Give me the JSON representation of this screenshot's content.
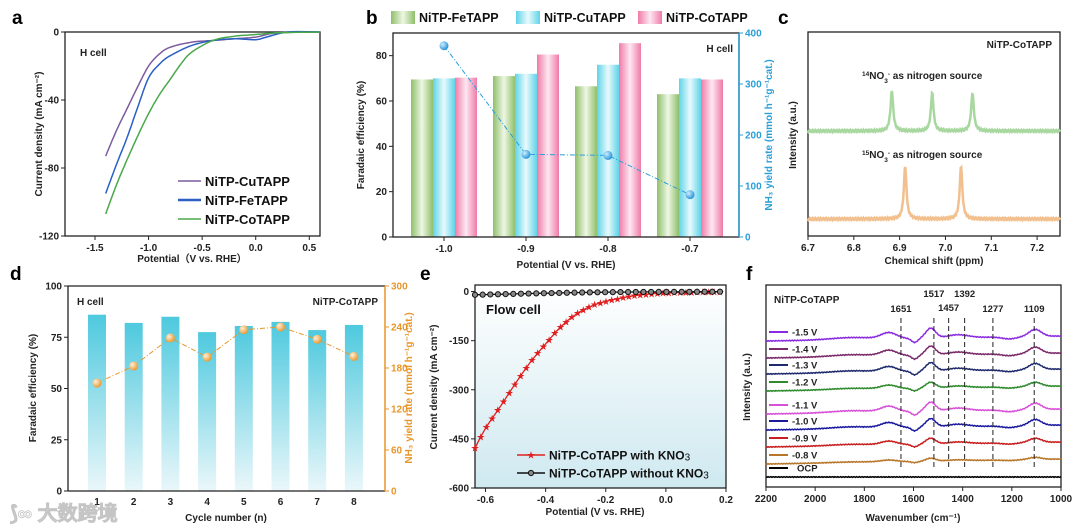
{
  "panel_labels": [
    "a",
    "b",
    "c",
    "d",
    "e",
    "f"
  ],
  "watermark": "大数跨境",
  "chart_data": [
    {
      "id": "a",
      "type": "line",
      "xlabel": "Potential（V vs. RHE）",
      "ylabel": "Current density (mA cm⁻²)",
      "xlim": [
        -1.78,
        0.6
      ],
      "ylim": [
        -120,
        0
      ],
      "xticks": [
        -1.5,
        -1.0,
        -0.5,
        0.0,
        0.5
      ],
      "xtick_labels": [
        "-1.5",
        "-1.0",
        "-0.5",
        "0.0",
        "0.5"
      ],
      "yticks": [
        0,
        -40,
        -80,
        -120
      ],
      "ytick_labels": [
        "0",
        "-40",
        "-80",
        "-120"
      ],
      "annotation": "H cell",
      "legend_position": "bottom-right",
      "series": [
        {
          "name": "NiTP-CuTAPP",
          "color": "#7b5c9e",
          "x": [
            -1.4,
            -1.3,
            -1.2,
            -1.1,
            -1.0,
            -0.9,
            -0.8,
            -0.6,
            -0.4,
            -0.2,
            0.0,
            0.2,
            0.6
          ],
          "y": [
            -73,
            -58,
            -45,
            -32,
            -20,
            -13,
            -9,
            -6,
            -5,
            -4,
            -3,
            -0.5,
            0
          ]
        },
        {
          "name": "NiTP-FeTAPP",
          "color": "#2a5fc4",
          "x": [
            -1.4,
            -1.3,
            -1.2,
            -1.1,
            -1.0,
            -0.9,
            -0.8,
            -0.6,
            -0.4,
            -0.2,
            0.0,
            0.1,
            0.3,
            0.6
          ],
          "y": [
            -95,
            -78,
            -62,
            -44,
            -27,
            -19,
            -14,
            -8,
            -5,
            -4,
            -4.5,
            -3,
            0,
            0
          ]
        },
        {
          "name": "NiTP-CoTAPP",
          "color": "#4aa84a",
          "x": [
            -1.4,
            -1.3,
            -1.2,
            -1.1,
            -1.0,
            -0.9,
            -0.8,
            -0.7,
            -0.6,
            -0.4,
            -0.2,
            0.0,
            0.2,
            0.6
          ],
          "y": [
            -107,
            -90,
            -75,
            -61,
            -48,
            -37,
            -28,
            -19,
            -12,
            -5,
            -2.5,
            -1.5,
            -0.5,
            0
          ]
        }
      ]
    },
    {
      "id": "b",
      "type": "bar",
      "xlabel": "Potential (V vs. RHE)",
      "ylabel": "Faradaic efficiency (%)",
      "ylabel_right": "NH₃ yield rate (mmol h⁻¹g⁻¹cat.)",
      "categories": [
        "-1.0",
        "-0.9",
        "-0.8",
        "-0.7"
      ],
      "ylim": [
        0,
        90
      ],
      "yticks": [
        0,
        20,
        40,
        60,
        80
      ],
      "ytick_labels": [
        "0",
        "20",
        "40",
        "60",
        "80"
      ],
      "ylim_right": [
        0,
        400
      ],
      "yticks_right": [
        0,
        100,
        200,
        300,
        400
      ],
      "ytick_labels_right": [
        "0",
        "100",
        "200",
        "300",
        "400"
      ],
      "annotation": "H cell",
      "legend_position": "top",
      "series": [
        {
          "name": "NiTP-FeTAPP",
          "color": "#8fbf6a",
          "values": [
            69.5,
            71,
            66.5,
            63
          ]
        },
        {
          "name": "NiTP-CuTAPP",
          "color": "#5fd3e8",
          "values": [
            70,
            72,
            76,
            70
          ]
        },
        {
          "name": "NiTP-CoTAPP",
          "color": "#f07aa8",
          "values": [
            70.3,
            80.5,
            85.5,
            69.5
          ]
        }
      ],
      "line_series": {
        "name": "NH₃ yield rate",
        "color": "#2a9fd8",
        "axis": "right",
        "values": [
          375,
          162,
          160,
          83
        ]
      }
    },
    {
      "id": "c",
      "type": "line",
      "xlabel": "Chemical shift (ppm)",
      "ylabel": "Intensity (a.u.)",
      "xlim": [
        6.7,
        7.25
      ],
      "xticks": [
        6.7,
        6.8,
        6.9,
        7.0,
        7.1,
        7.2
      ],
      "xtick_labels": [
        "6.7",
        "6.8",
        "6.9",
        "7.0",
        "7.1",
        "7.2"
      ],
      "annotation": "NiTP-CoTAPP",
      "series": [
        {
          "name": "¹⁴NO₃⁻ as nitrogen source",
          "label_mass": "14",
          "label_rest": "NO",
          "label_sub": "3",
          "label_sup": "-",
          "label_tail": " as  nitrogen source",
          "color": "#a8d8a0",
          "peaks_ppm": [
            6.883,
            6.971,
            7.059
          ],
          "peak_intensity": [
            1.0,
            0.95,
            0.95
          ]
        },
        {
          "name": "¹⁵NO₃⁻ as nitrogen source",
          "label_mass": "15",
          "label_rest": "NO",
          "label_sub": "3",
          "label_sup": "-",
          "label_tail": " as  nitrogen source",
          "color": "#f2c08e",
          "peaks_ppm": [
            6.912,
            7.034
          ],
          "peak_intensity": [
            1.0,
            1.0
          ]
        }
      ]
    },
    {
      "id": "d",
      "type": "bar",
      "xlabel": "Cycle number (n)",
      "ylabel": "Faradaic efficiency (%)",
      "ylabel_right": "NH₃ yield rate (mmol h⁻¹g⁻¹cat.)",
      "categories": [
        "1",
        "2",
        "3",
        "4",
        "5",
        "6",
        "7",
        "8"
      ],
      "ylim": [
        0,
        100
      ],
      "yticks": [
        0,
        25,
        50,
        75,
        100
      ],
      "ytick_labels": [
        "0",
        "25",
        "50",
        "75",
        "100"
      ],
      "ylim_right": [
        0,
        300
      ],
      "yticks_right": [
        0,
        60,
        120,
        180,
        240,
        300
      ],
      "ytick_labels_right": [
        "0",
        "60",
        "120",
        "180",
        "240",
        "300"
      ],
      "annotation_left": "H cell",
      "annotation_right": "NiTP-CoTAPP",
      "bar_color": "#4ec9de",
      "values": [
        86,
        82,
        85,
        77.5,
        80.5,
        82.5,
        78.5,
        81
      ],
      "line_series": {
        "name": "NH₃ yield rate",
        "color": "#e8962a",
        "axis": "right",
        "values": [
          158,
          183,
          224,
          196,
          236,
          240,
          222,
          197
        ]
      }
    },
    {
      "id": "e",
      "type": "line",
      "xlabel": "Potential (V vs. RHE)",
      "ylabel": "Current density (mA cm⁻²)",
      "xlim": [
        -0.635,
        0.2
      ],
      "ylim": [
        -600,
        20
      ],
      "xticks": [
        -0.6,
        -0.4,
        -0.2,
        0.0,
        0.2
      ],
      "xtick_labels": [
        "-0.6",
        "-0.4",
        "-0.2",
        "0.0",
        "0.2"
      ],
      "yticks": [
        0,
        -150,
        -300,
        -450,
        -600
      ],
      "ytick_labels": [
        "0",
        "-150",
        "-300",
        "-450",
        "-600"
      ],
      "annotation": "Flow cell",
      "legend_position": "bottom-right",
      "series": [
        {
          "name": "NiTP-CoTAPP with KNO",
          "name_sub": "3",
          "color": "#e02020",
          "marker": "star",
          "x": [
            -0.635,
            -0.6,
            -0.55,
            -0.5,
            -0.45,
            -0.4,
            -0.35,
            -0.3,
            -0.25,
            -0.2,
            -0.15,
            -0.1,
            -0.05,
            0.0,
            0.1,
            0.18
          ],
          "y": [
            -478,
            -418,
            -350,
            -280,
            -215,
            -160,
            -108,
            -70,
            -45,
            -30,
            -20,
            -12,
            -7,
            -4,
            -2,
            -1
          ]
        },
        {
          "name": "NiTP-CoTAPP without KNO",
          "name_sub": "3",
          "color": "#111111",
          "marker": "circle",
          "x": [
            -0.635,
            -0.4,
            -0.2,
            0.0,
            0.18
          ],
          "y": [
            -10,
            -5,
            -2,
            -1,
            -0.5
          ]
        }
      ]
    },
    {
      "id": "f",
      "type": "line",
      "xlabel": "Wavenumber (cm⁻¹)",
      "ylabel": "Intensity (a.u.)",
      "xlim": [
        2200,
        1000
      ],
      "x_reversed": true,
      "xticks": [
        2200,
        2000,
        1800,
        1600,
        1400,
        1200,
        1000
      ],
      "xtick_labels": [
        "2200",
        "2000",
        "1800",
        "1600",
        "1400",
        "1200",
        "1000"
      ],
      "annotation": "NiTP-CoTAPP",
      "reference_lines": [
        1651,
        1517,
        1457,
        1392,
        1277,
        1109
      ],
      "reference_labels": [
        "1651",
        "1517",
        "1457",
        "1392",
        "1277",
        "1109"
      ],
      "series": [
        {
          "name": "-1.5 V",
          "color": "#8a2be2",
          "relative_intensity": 1.0
        },
        {
          "name": "-1.4 V",
          "color": "#7a2a6a",
          "relative_intensity": 0.9
        },
        {
          "name": "-1.3 V",
          "color": "#1e2a6e",
          "relative_intensity": 0.85
        },
        {
          "name": "-1.2 V",
          "color": "#2e8b2e",
          "relative_intensity": 0.6
        },
        {
          "name": "-1.1 V",
          "color": "#d84fd8",
          "relative_intensity": 0.9
        },
        {
          "name": "-1.0 V",
          "color": "#1a1aa0",
          "relative_intensity": 0.85
        },
        {
          "name": "-0.9 V",
          "color": "#c82020",
          "relative_intensity": 0.6
        },
        {
          "name": "-0.8 V",
          "color": "#b8762a",
          "relative_intensity": 0.3
        },
        {
          "name": "OCP",
          "color": "#000000",
          "relative_intensity": 0.0
        }
      ]
    }
  ]
}
